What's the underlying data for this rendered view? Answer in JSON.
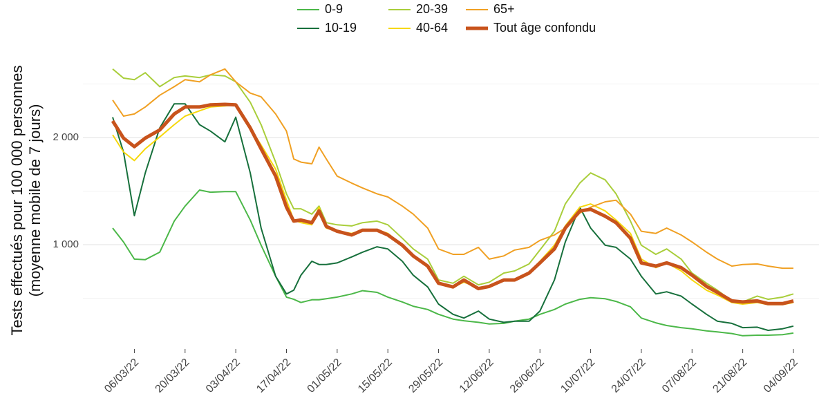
{
  "chart_data": {
    "type": "line",
    "ylabel": [
      "Tests effectués pour 100 000 personnes",
      "(moyenne mobile de 7 jours)"
    ],
    "x": [
      "28/02/22",
      "03/03/22",
      "06/03/22",
      "09/03/22",
      "13/03/22",
      "17/03/22",
      "20/03/22",
      "24/03/22",
      "27/03/22",
      "31/03/22",
      "03/04/22",
      "07/04/22",
      "10/04/22",
      "14/04/22",
      "17/04/22",
      "19/04/22",
      "21/04/22",
      "24/04/22",
      "26/04/22",
      "28/04/22",
      "01/05/22",
      "05/05/22",
      "08/05/22",
      "12/05/22",
      "15/05/22",
      "19/05/22",
      "22/05/22",
      "26/05/22",
      "29/05/22",
      "02/06/22",
      "05/06/22",
      "09/06/22",
      "12/06/22",
      "16/06/22",
      "19/06/22",
      "23/06/22",
      "26/06/22",
      "30/06/22",
      "03/07/22",
      "07/07/22",
      "10/07/22",
      "14/07/22",
      "17/07/22",
      "21/07/22",
      "24/07/22",
      "28/07/22",
      "31/07/22",
      "04/08/22",
      "07/08/22",
      "11/08/22",
      "14/08/22",
      "18/08/22",
      "21/08/22",
      "25/08/22",
      "28/08/22",
      "01/09/22",
      "04/09/22"
    ],
    "series": [
      {
        "name": "0-9",
        "color": "#4cb849",
        "width": 2,
        "values": [
          1155,
          1025,
          865,
          860,
          930,
          1220,
          1360,
          1510,
          1490,
          1495,
          1495,
          1230,
          995,
          705,
          510,
          490,
          460,
          485,
          485,
          495,
          510,
          540,
          570,
          555,
          510,
          465,
          425,
          395,
          350,
          305,
          290,
          275,
          260,
          265,
          285,
          305,
          350,
          395,
          445,
          490,
          505,
          495,
          470,
          420,
          315,
          270,
          245,
          225,
          215,
          195,
          185,
          170,
          150,
          155,
          155,
          160,
          175
        ]
      },
      {
        "name": "10-19",
        "color": "#17703c",
        "width": 2,
        "values": [
          2190,
          1865,
          1270,
          1670,
          2090,
          2315,
          2315,
          2120,
          2060,
          1960,
          2190,
          1670,
          1155,
          705,
          540,
          575,
          715,
          845,
          815,
          815,
          830,
          885,
          930,
          980,
          960,
          845,
          715,
          605,
          445,
          350,
          315,
          380,
          305,
          275,
          285,
          285,
          380,
          670,
          1025,
          1350,
          1155,
          995,
          975,
          865,
          705,
          540,
          560,
          520,
          445,
          350,
          285,
          265,
          225,
          230,
          200,
          215,
          240
        ]
      },
      {
        "name": "20-39",
        "color": "#a9ce3b",
        "width": 2,
        "values": [
          2640,
          2555,
          2540,
          2605,
          2475,
          2560,
          2575,
          2560,
          2585,
          2575,
          2520,
          2330,
          2120,
          1770,
          1475,
          1335,
          1335,
          1285,
          1360,
          1205,
          1185,
          1175,
          1205,
          1220,
          1185,
          1060,
          960,
          865,
          670,
          640,
          705,
          625,
          650,
          735,
          755,
          820,
          950,
          1125,
          1380,
          1575,
          1670,
          1605,
          1475,
          1220,
          995,
          910,
          960,
          865,
          735,
          640,
          575,
          475,
          465,
          520,
          490,
          510,
          540
        ]
      },
      {
        "name": "40-64",
        "color": "#f6d80c",
        "width": 2,
        "values": [
          2025,
          1865,
          1785,
          1895,
          2005,
          2120,
          2200,
          2250,
          2285,
          2295,
          2305,
          2090,
          1930,
          1705,
          1415,
          1230,
          1205,
          1185,
          1350,
          1155,
          1125,
          1105,
          1135,
          1140,
          1105,
          995,
          895,
          800,
          640,
          605,
          650,
          600,
          610,
          670,
          670,
          735,
          845,
          995,
          1175,
          1350,
          1380,
          1315,
          1230,
          1105,
          865,
          785,
          830,
          755,
          670,
          575,
          530,
          460,
          445,
          460,
          440,
          440,
          460
        ]
      },
      {
        "name": "65+",
        "color": "#f0a023",
        "width": 2,
        "values": [
          2350,
          2200,
          2220,
          2285,
          2395,
          2475,
          2540,
          2520,
          2585,
          2640,
          2520,
          2415,
          2380,
          2220,
          2060,
          1800,
          1770,
          1755,
          1910,
          1800,
          1640,
          1575,
          1530,
          1475,
          1445,
          1360,
          1285,
          1155,
          960,
          910,
          910,
          975,
          865,
          895,
          950,
          975,
          1040,
          1090,
          1155,
          1295,
          1350,
          1400,
          1415,
          1285,
          1125,
          1105,
          1155,
          1090,
          1025,
          930,
          865,
          800,
          815,
          820,
          800,
          780,
          780
        ]
      },
      {
        "name": "Tout âge confondu",
        "color": "#c8531c",
        "width": 5,
        "values": [
          2155,
          1995,
          1915,
          1995,
          2070,
          2220,
          2285,
          2285,
          2305,
          2310,
          2305,
          2090,
          1895,
          1640,
          1350,
          1220,
          1230,
          1205,
          1315,
          1170,
          1125,
          1090,
          1135,
          1135,
          1090,
          995,
          895,
          800,
          640,
          605,
          670,
          590,
          610,
          670,
          670,
          735,
          830,
          960,
          1155,
          1315,
          1330,
          1265,
          1205,
          1060,
          830,
          800,
          830,
          785,
          715,
          610,
          555,
          475,
          465,
          475,
          450,
          450,
          475
        ]
      }
    ],
    "xlim": [
      "28/02/22",
      "04/09/22"
    ],
    "xticks": [
      "06/03/22",
      "20/03/22",
      "03/04/22",
      "17/04/22",
      "01/05/22",
      "15/05/22",
      "29/05/22",
      "12/06/22",
      "26/06/22",
      "10/07/22",
      "24/07/22",
      "07/08/22",
      "21/08/22",
      "04/09/22"
    ],
    "ylim": [
      0,
      2700
    ],
    "yticks": [
      {
        "value": 1000,
        "label": "1 000"
      },
      {
        "value": 2000,
        "label": "2 000"
      }
    ],
    "yminor": [
      500,
      1500,
      2500
    ],
    "grid": true,
    "legend": "top"
  }
}
